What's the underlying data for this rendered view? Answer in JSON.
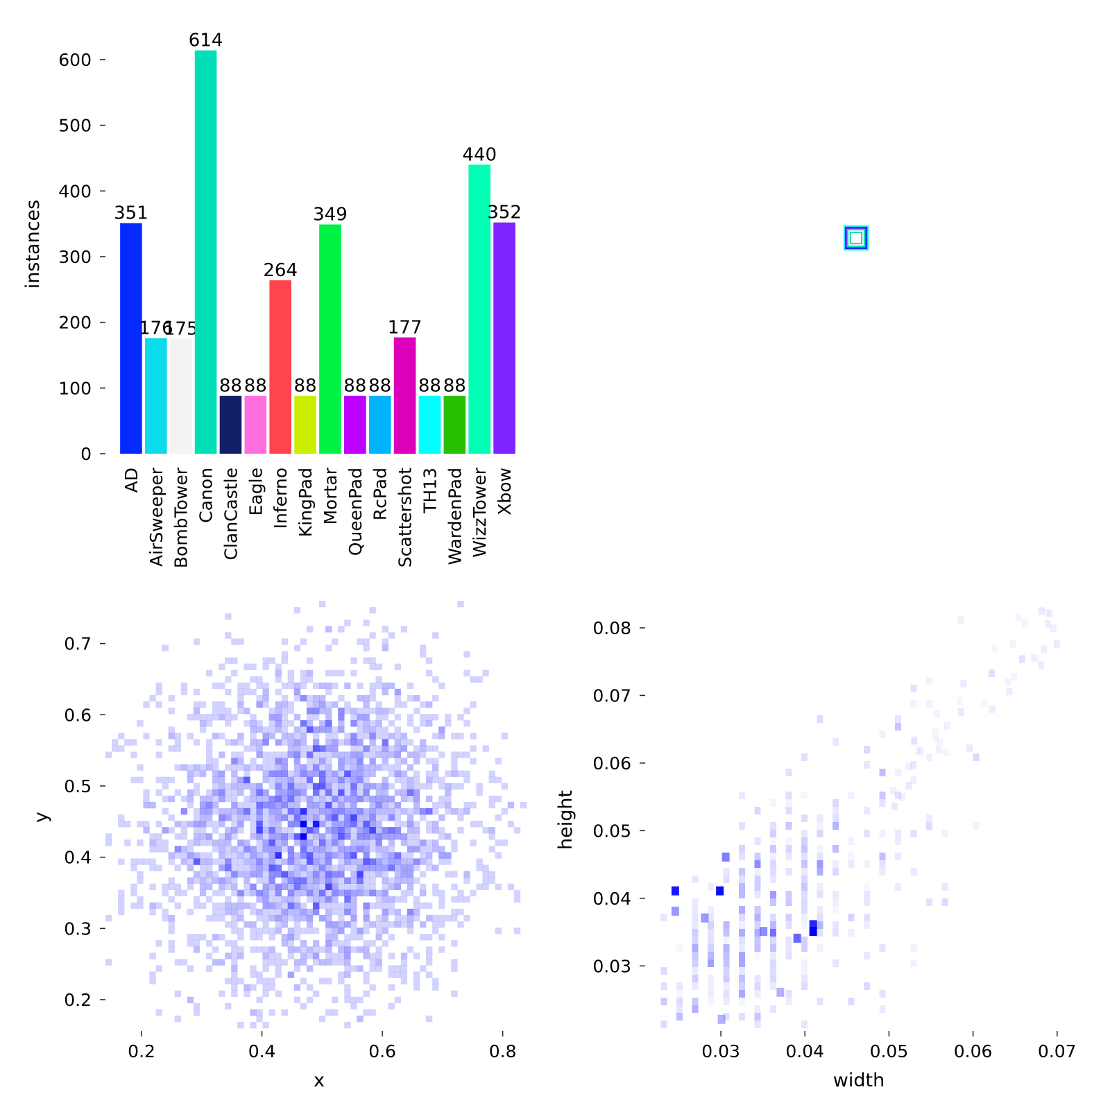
{
  "chart_data": [
    {
      "type": "bar",
      "ylabel": "instances",
      "ylim": [
        0,
        640
      ],
      "yticks": [
        0,
        100,
        200,
        300,
        400,
        500,
        600
      ],
      "categories": [
        "AD",
        "AirSweeper",
        "BombTower",
        "Canon",
        "ClanCastle",
        "Eagle",
        "Inferno",
        "KingPad",
        "Mortar",
        "QueenPad",
        "RcPad",
        "Scattershot",
        "TH13",
        "WardenPad",
        "WizzTower",
        "Xbow"
      ],
      "values": [
        351,
        176,
        175,
        614,
        88,
        88,
        264,
        88,
        349,
        88,
        88,
        177,
        88,
        88,
        440,
        352
      ],
      "colors": [
        "#042aff",
        "#0bdbeb",
        "#f3f3f3",
        "#00dfb7",
        "#111f68",
        "#ff6fdd",
        "#ff444f",
        "#cced00",
        "#00f344",
        "#bd00ff",
        "#00b4ff",
        "#dd00ba",
        "#00ffff",
        "#26c000",
        "#01ffb3",
        "#7d24ff"
      ]
    },
    {
      "type": "box-overlay",
      "note": "stacked bounding-box outlines (normalized boxes)",
      "colors": [
        "#00ffff",
        "#042aff",
        "#7d24ff",
        "#00dfb7",
        "#f3f3f3"
      ]
    },
    {
      "type": "heatmap",
      "xlabel": "x",
      "ylabel": "y",
      "xlim": [
        0.14,
        0.85
      ],
      "ylim": [
        0.16,
        0.76
      ],
      "xticks": [
        0.2,
        0.4,
        0.6,
        0.8
      ],
      "yticks": [
        0.2,
        0.3,
        0.4,
        0.5,
        0.6,
        0.7
      ],
      "color": "#0000ff",
      "distribution": {
        "center": [
          0.49,
          0.44
        ],
        "spread": [
          0.13,
          0.11
        ],
        "bins": 50
      }
    },
    {
      "type": "heatmap",
      "xlabel": "width",
      "ylabel": "height",
      "xlim": [
        0.021,
        0.072
      ],
      "ylim": [
        0.021,
        0.084
      ],
      "xticks": [
        0.03,
        0.04,
        0.05,
        0.06,
        0.07
      ],
      "yticks": [
        0.03,
        0.04,
        0.05,
        0.06,
        0.07,
        0.08
      ],
      "color": "#0000ff",
      "hotspots": [
        {
          "w": 0.0245,
          "h": 0.0412,
          "v": 0.9
        },
        {
          "w": 0.0298,
          "h": 0.0412,
          "v": 0.95
        },
        {
          "w": 0.0409,
          "h": 0.0352,
          "v": 1.0
        },
        {
          "w": 0.0409,
          "h": 0.0362,
          "v": 0.85
        },
        {
          "w": 0.039,
          "h": 0.0342,
          "v": 0.6
        },
        {
          "w": 0.035,
          "h": 0.0352,
          "v": 0.45
        },
        {
          "w": 0.0305,
          "h": 0.0462,
          "v": 0.5
        },
        {
          "w": 0.0245,
          "h": 0.0382,
          "v": 0.4
        },
        {
          "w": 0.028,
          "h": 0.0372,
          "v": 0.4
        },
        {
          "w": 0.037,
          "h": 0.0262,
          "v": 0.3
        },
        {
          "w": 0.03,
          "h": 0.0222,
          "v": 0.3
        }
      ]
    }
  ]
}
